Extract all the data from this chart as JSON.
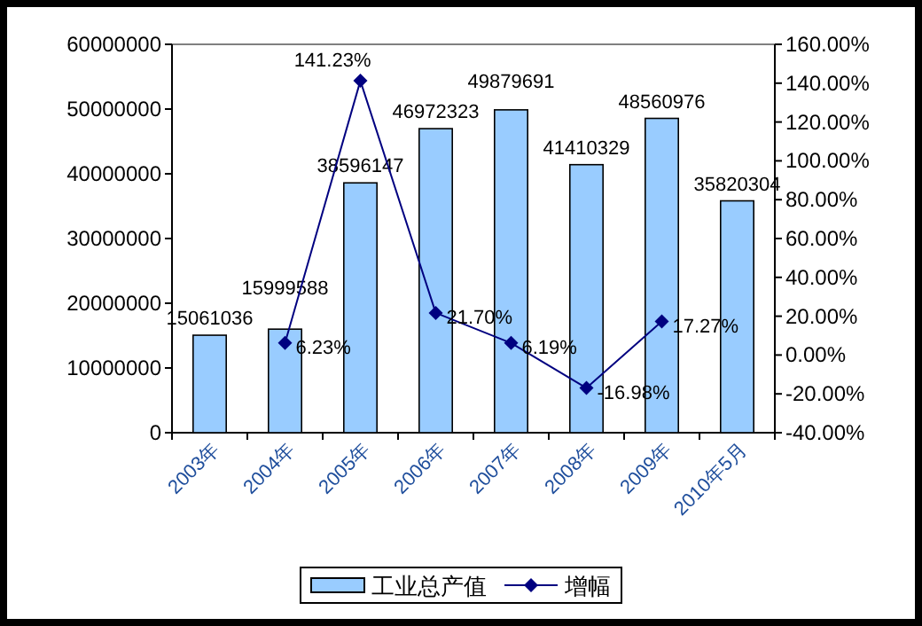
{
  "chart_data": {
    "type": "bar",
    "categories": [
      "2003年",
      "2004年",
      "2005年",
      "2006年",
      "2007年",
      "2008年",
      "2009年",
      "2010年5月"
    ],
    "series": [
      {
        "name": "工业总产值",
        "color": "#99ccff",
        "values": [
          15061036,
          15999588,
          38596147,
          46972323,
          49879691,
          41410329,
          48560976,
          35820304
        ],
        "value_labels": [
          "15061036",
          "15999588",
          "38596147",
          "46972323",
          "49879691",
          "41410329",
          "48560976",
          "35820304"
        ]
      },
      {
        "name": "增幅",
        "type": "line",
        "axis": "y2",
        "color": "#000080",
        "marker": "diamond",
        "values": [
          null,
          6.23,
          141.23,
          21.7,
          6.19,
          -16.98,
          17.27,
          null
        ],
        "value_labels": [
          null,
          "6.23%",
          "141.23%",
          "21.70%",
          "6.19%",
          "-16.98%",
          "17.27%",
          null
        ]
      }
    ],
    "ylim": [
      0,
      60000000
    ],
    "yticks": [
      0,
      10000000,
      20000000,
      30000000,
      40000000,
      50000000,
      60000000
    ],
    "y2lim": [
      -40,
      160
    ],
    "y2ticks": [
      {
        "value": -40,
        "label": "-40.00%"
      },
      {
        "value": -20,
        "label": "-20.00%"
      },
      {
        "value": 0,
        "label": "0.00%"
      },
      {
        "value": 20,
        "label": "20.00%"
      },
      {
        "value": 40,
        "label": "40.00%"
      },
      {
        "value": 60,
        "label": "60.00%"
      },
      {
        "value": 80,
        "label": "80.00%"
      },
      {
        "value": 100,
        "label": "100.00%"
      },
      {
        "value": 120,
        "label": "120.00%"
      },
      {
        "value": 140,
        "label": "140.00%"
      },
      {
        "value": 160,
        "label": "160.00%"
      }
    ],
    "legend": "bottom",
    "grid": false
  }
}
